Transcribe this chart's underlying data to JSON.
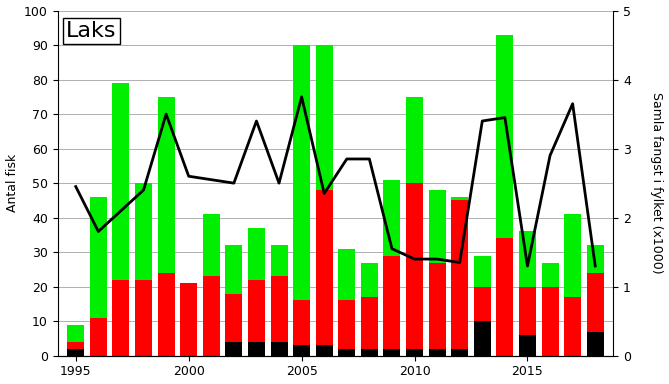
{
  "years": [
    1995,
    1996,
    1997,
    1998,
    1999,
    2000,
    2001,
    2002,
    2003,
    2004,
    2005,
    2006,
    2007,
    2008,
    2009,
    2010,
    2011,
    2012,
    2013,
    2014,
    2015,
    2016,
    2017,
    2018
  ],
  "black": [
    2,
    0,
    0,
    0,
    0,
    0,
    0,
    4,
    4,
    4,
    3,
    3,
    2,
    2,
    2,
    2,
    2,
    2,
    10,
    0,
    6,
    0,
    0,
    7
  ],
  "red": [
    2,
    11,
    22,
    22,
    24,
    21,
    23,
    14,
    18,
    19,
    13,
    45,
    14,
    15,
    27,
    48,
    25,
    43,
    10,
    34,
    14,
    20,
    17,
    17
  ],
  "green": [
    5,
    35,
    57,
    28,
    51,
    0,
    18,
    14,
    15,
    9,
    74,
    42,
    15,
    10,
    22,
    25,
    21,
    1,
    9,
    59,
    16,
    7,
    24,
    8
  ],
  "line": [
    2.45,
    1.8,
    2.1,
    2.4,
    3.5,
    2.6,
    2.55,
    2.5,
    3.4,
    2.5,
    3.75,
    2.35,
    2.85,
    2.85,
    1.55,
    1.4,
    1.4,
    1.35,
    3.4,
    3.45,
    1.3,
    2.9,
    3.65,
    1.3
  ],
  "title": "Laks",
  "ylabel_left": "Antal fisk",
  "ylabel_right": "Samla fangst i fylket (x1000)",
  "ylim_left": [
    0,
    100
  ],
  "ylim_right": [
    0,
    5
  ],
  "bar_colors": [
    "#000000",
    "#ff0000",
    "#00ee00"
  ],
  "line_color": "#000000",
  "background_color": "#ffffff",
  "grid_color": "#b0b0b0",
  "xticks": [
    1995,
    2000,
    2005,
    2010,
    2015
  ],
  "yticks_left": [
    0,
    10,
    20,
    30,
    40,
    50,
    60,
    70,
    80,
    90,
    100
  ],
  "yticks_right": [
    0,
    1,
    2,
    3,
    4,
    5
  ],
  "bar_width": 0.75,
  "line_width": 2.0,
  "title_fontsize": 16,
  "label_fontsize": 9,
  "tick_fontsize": 9
}
